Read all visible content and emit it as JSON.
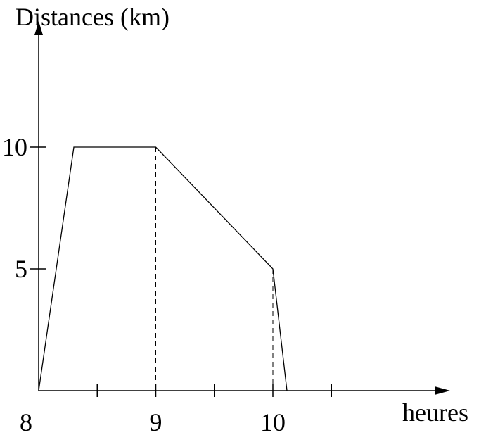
{
  "chart_data": {
    "type": "line",
    "ylabel": "Distances (km)",
    "xlabel": "heures",
    "x_unit": "hours",
    "x_ticks": [
      8,
      8.5,
      9,
      9.5,
      10,
      10.5
    ],
    "x_tick_labels": [
      {
        "x": 8,
        "label": "8"
      },
      {
        "x": 9,
        "label": "9"
      },
      {
        "x": 10,
        "label": "10"
      }
    ],
    "y_tick_labels": [
      {
        "y": 5,
        "label": "5"
      },
      {
        "y": 10,
        "label": "10"
      }
    ],
    "series": [
      {
        "points": [
          {
            "x": 8,
            "y": 0
          },
          {
            "x": 8.3,
            "y": 10
          },
          {
            "x": 9,
            "y": 10
          },
          {
            "x": 10,
            "y": 5
          },
          {
            "x": 10.12,
            "y": 0
          }
        ]
      }
    ],
    "guides": [
      {
        "x": 9,
        "y": 10
      },
      {
        "x": 10,
        "y": 5
      }
    ],
    "xlim": [
      8,
      11
    ],
    "ylim": [
      0,
      15
    ],
    "grid": false,
    "legend": "none"
  }
}
